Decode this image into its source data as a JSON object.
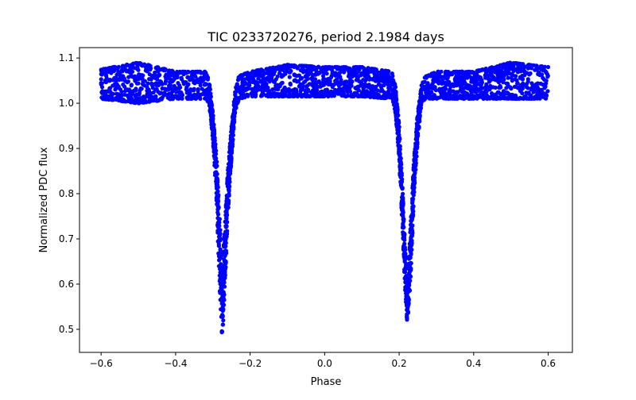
{
  "chart_data": {
    "type": "scatter",
    "title": "TIC 0233720276, period 2.1984 days",
    "xlabel": "Phase",
    "ylabel": "Normalized PDC flux",
    "xlim": [
      -0.658,
      0.665
    ],
    "ylim": [
      0.449,
      1.123
    ],
    "xticks": [
      -0.6,
      -0.4,
      -0.2,
      0.0,
      0.2,
      0.4,
      0.6
    ],
    "xtick_labels": [
      "−0.6",
      "−0.4",
      "−0.2",
      "0.0",
      "0.2",
      "0.4",
      "0.6"
    ],
    "yticks": [
      0.5,
      0.6,
      0.7,
      0.8,
      0.9,
      1.0,
      1.1
    ],
    "ytick_labels": [
      "0.5",
      "0.6",
      "0.7",
      "0.8",
      "0.9",
      "1.0",
      "1.1"
    ],
    "grid": false,
    "marker_color": "#0000ff",
    "series": [
      {
        "name": "flux",
        "envelope_phase": [
          -0.6,
          -0.5,
          -0.4,
          -0.32,
          -0.31,
          -0.3,
          -0.29,
          -0.28,
          -0.275,
          -0.27,
          -0.26,
          -0.25,
          -0.24,
          -0.23,
          -0.2,
          -0.1,
          0.0,
          0.1,
          0.18,
          0.19,
          0.2,
          0.21,
          0.215,
          0.222,
          0.23,
          0.24,
          0.25,
          0.26,
          0.27,
          0.3,
          0.4,
          0.5,
          0.6
        ],
        "flux_upper": [
          1.075,
          1.09,
          1.07,
          1.07,
          1.05,
          0.98,
          0.88,
          0.72,
          0.62,
          0.7,
          0.85,
          0.95,
          1.03,
          1.06,
          1.07,
          1.085,
          1.08,
          1.08,
          1.07,
          1.04,
          0.95,
          0.8,
          0.7,
          0.6,
          0.72,
          0.88,
          0.98,
          1.04,
          1.06,
          1.07,
          1.07,
          1.09,
          1.08
        ],
        "flux_lower": [
          1.01,
          1.0,
          1.01,
          1.01,
          1.0,
          0.92,
          0.78,
          0.55,
          0.48,
          0.55,
          0.75,
          0.88,
          0.98,
          1.01,
          1.015,
          1.015,
          1.015,
          1.015,
          1.01,
          0.98,
          0.88,
          0.7,
          0.6,
          0.51,
          0.6,
          0.8,
          0.92,
          1.0,
          1.01,
          1.01,
          1.01,
          1.01,
          1.01
        ]
      }
    ]
  }
}
